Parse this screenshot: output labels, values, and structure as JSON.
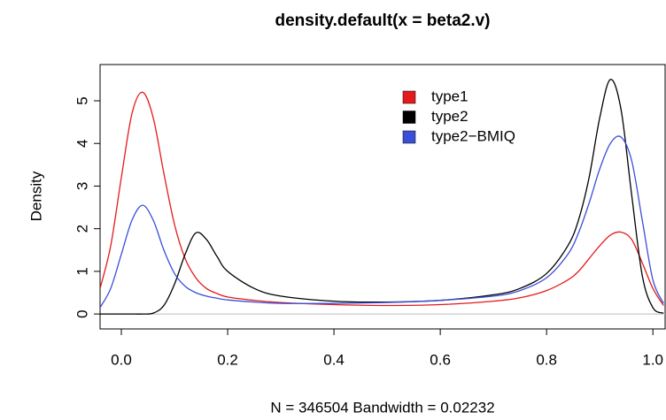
{
  "chart_data": {
    "type": "line",
    "title": "density.default(x = beta2.v)",
    "x_label": "N = 346504   Bandwidth = 0.02232",
    "y_label": "Density",
    "x": [
      -0.04,
      -0.02,
      0,
      0.02,
      0.04,
      0.06,
      0.08,
      0.1,
      0.12,
      0.14,
      0.16,
      0.18,
      0.2,
      0.25,
      0.3,
      0.4,
      0.5,
      0.6,
      0.7,
      0.75,
      0.8,
      0.84,
      0.86,
      0.88,
      0.9,
      0.92,
      0.94,
      0.96,
      0.98,
      1.0,
      1.02
    ],
    "series": [
      {
        "name": "type1",
        "color": "#e41a1c",
        "values": [
          0.6,
          1.6,
          3.2,
          4.7,
          5.2,
          4.6,
          3.3,
          2.1,
          1.3,
          0.85,
          0.6,
          0.48,
          0.4,
          0.32,
          0.27,
          0.22,
          0.2,
          0.22,
          0.3,
          0.38,
          0.55,
          0.8,
          1.0,
          1.3,
          1.6,
          1.85,
          1.92,
          1.75,
          1.2,
          0.6,
          0.2
        ]
      },
      {
        "name": "type2",
        "color": "#000000",
        "values": [
          0,
          0,
          0,
          0,
          0,
          0.02,
          0.2,
          0.7,
          1.4,
          1.9,
          1.75,
          1.35,
          1.0,
          0.6,
          0.42,
          0.3,
          0.28,
          0.32,
          0.45,
          0.6,
          0.95,
          1.6,
          2.2,
          3.2,
          4.6,
          5.5,
          4.8,
          2.8,
          0.9,
          0.15,
          0.02
        ]
      },
      {
        "name": "type2−BMIQ",
        "color": "#3a4fd6",
        "values": [
          0.15,
          0.6,
          1.4,
          2.2,
          2.55,
          2.2,
          1.5,
          0.95,
          0.65,
          0.5,
          0.42,
          0.37,
          0.33,
          0.28,
          0.25,
          0.25,
          0.27,
          0.32,
          0.42,
          0.55,
          0.85,
          1.4,
          1.9,
          2.6,
          3.4,
          4.0,
          4.15,
          3.6,
          2.2,
          0.8,
          0.25
        ]
      }
    ],
    "xlim": [
      -0.04,
      1.023
    ],
    "ylim": [
      -0.35,
      5.85
    ],
    "xticks": [
      {
        "value": 0,
        "label": "0.0"
      },
      0.2,
      0.4,
      0.6,
      0.8,
      {
        "value": 1,
        "label": "1.0"
      }
    ],
    "yticks": [
      0,
      1,
      2,
      3,
      4,
      5
    ],
    "zero_line": true,
    "legend": "top"
  }
}
